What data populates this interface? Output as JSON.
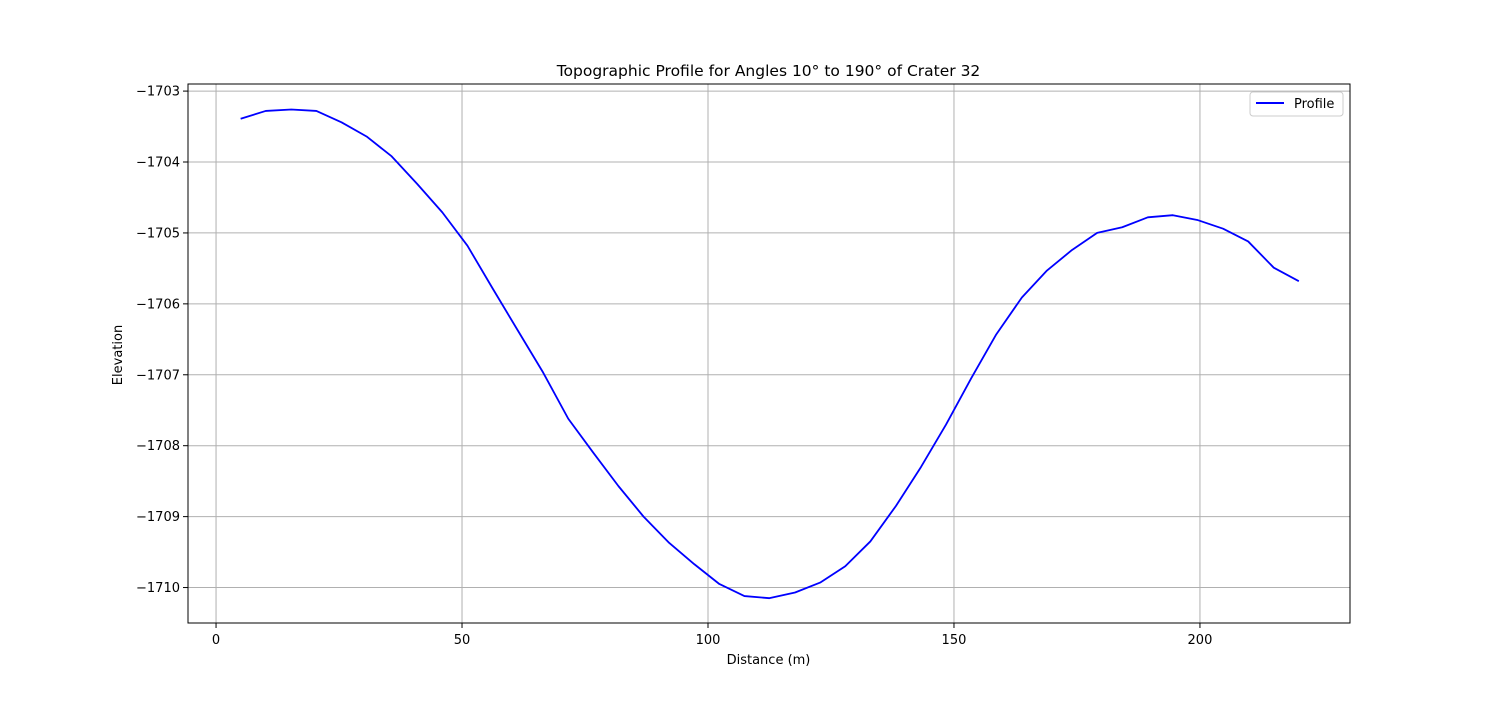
{
  "chart_data": {
    "type": "line",
    "title": "Topographic Profile for Angles 10° to 190° of Crater 32",
    "xlabel": "Distance (m)",
    "ylabel": "Elevation",
    "xlim": [
      -5.7,
      230.5
    ],
    "ylim": [
      -1710.5,
      -1702.9
    ],
    "x_ticks": [
      0,
      50,
      100,
      150,
      200
    ],
    "y_ticks": [
      -1710,
      -1709,
      -1708,
      -1707,
      -1706,
      -1705,
      -1704,
      -1703
    ],
    "x_tick_labels": [
      "0",
      "50",
      "100",
      "150",
      "200"
    ],
    "y_tick_labels": [
      "−1710",
      "−1709",
      "−1708",
      "−1707",
      "−1706",
      "−1705",
      "−1704",
      "−1703"
    ],
    "grid": true,
    "legend_position": "top-right",
    "series": [
      {
        "name": "Profile",
        "color": "#0000ff",
        "x": [
          5.0,
          10.1,
          15.3,
          20.4,
          25.5,
          30.6,
          35.7,
          40.9,
          46.0,
          51.1,
          56.2,
          61.3,
          66.5,
          71.6,
          76.7,
          81.8,
          86.9,
          92.1,
          97.2,
          102.3,
          107.4,
          112.5,
          117.7,
          122.8,
          127.9,
          133.0,
          138.2,
          143.3,
          148.4,
          153.5,
          158.6,
          163.8,
          168.9,
          174.0,
          179.1,
          184.2,
          189.4,
          194.5,
          199.6,
          204.7,
          209.8,
          215.0,
          220.1
        ],
        "y": [
          -1703.39,
          -1703.28,
          -1703.26,
          -1703.28,
          -1703.44,
          -1703.64,
          -1703.92,
          -1704.31,
          -1704.71,
          -1705.18,
          -1705.78,
          -1706.37,
          -1706.97,
          -1707.62,
          -1708.1,
          -1708.57,
          -1709.0,
          -1709.37,
          -1709.67,
          -1709.95,
          -1710.12,
          -1710.15,
          -1710.07,
          -1709.93,
          -1709.7,
          -1709.35,
          -1708.85,
          -1708.3,
          -1707.7,
          -1707.05,
          -1706.43,
          -1705.91,
          -1705.53,
          -1705.24,
          -1705.0,
          -1704.92,
          -1704.78,
          -1704.75,
          -1704.82,
          -1704.94,
          -1705.12,
          -1705.49,
          -1705.68
        ]
      }
    ]
  }
}
